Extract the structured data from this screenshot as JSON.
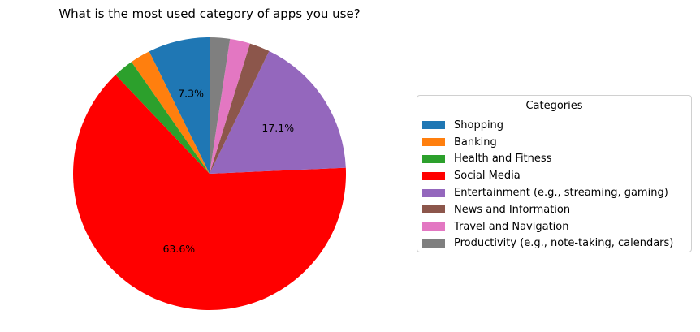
{
  "chart_data": {
    "type": "pie",
    "title": "What is the most used category of apps you use?",
    "legend_title": "Categories",
    "legend_position": "right",
    "start_angle": 90,
    "direction": "counterclockwise",
    "slices": [
      {
        "label": "Shopping",
        "value": 7.3,
        "color": "#1f77b4",
        "pct_label": "7.3%"
      },
      {
        "label": "Banking",
        "value": 2.4,
        "color": "#ff7f0e",
        "pct_label": ""
      },
      {
        "label": "Health and Fitness",
        "value": 2.4,
        "color": "#2ca02c",
        "pct_label": ""
      },
      {
        "label": "Social Media",
        "value": 63.6,
        "color": "#ff0000",
        "pct_label": "63.6%"
      },
      {
        "label": "Entertainment (e.g., streaming, gaming)",
        "value": 17.1,
        "color": "#9467bd",
        "pct_label": "17.1%"
      },
      {
        "label": "News and Information",
        "value": 2.4,
        "color": "#8c564b",
        "pct_label": ""
      },
      {
        "label": "Travel and Navigation",
        "value": 2.4,
        "color": "#e377c2",
        "pct_label": ""
      },
      {
        "label": "Productivity (e.g., note-taking, calendars)",
        "value": 2.4,
        "color": "#7f7f7f",
        "pct_label": ""
      }
    ]
  }
}
